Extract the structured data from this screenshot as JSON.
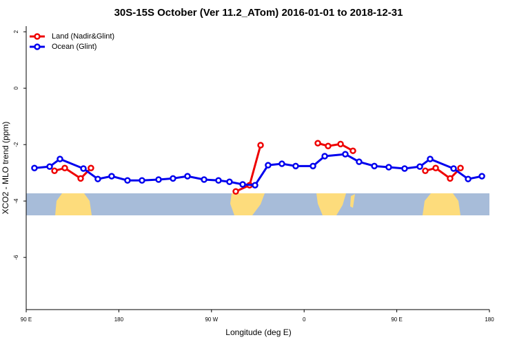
{
  "chart_data": {
    "type": "line",
    "title": "30S-15S October (Ver 11.2_ATom)   2016-01-01 to 2018-12-31",
    "x_label": "Longitude (deg E)",
    "y_label": "XCO2 - MLO trend (ppm)",
    "xlim": [
      90,
      540
    ],
    "xticks": [
      {
        "value": 90,
        "label": "90 E"
      },
      180,
      {
        "value": 270,
        "label": "90 W"
      },
      {
        "value": 360,
        "label": "0"
      },
      {
        "value": 450,
        "label": "90 E"
      },
      {
        "value": 540,
        "label": "180"
      }
    ],
    "ylim": [
      -7.85,
      2.2
    ],
    "yticks": [
      2,
      0,
      -2,
      -4,
      -6
    ],
    "legend": "top-left",
    "series": [
      {
        "name": "Land (Nadir&Glint)",
        "color": "#ee0000",
        "x": [
          117.5,
          127.5,
          142.9,
          152.9,
          null,
          293.6,
          307,
          317.7,
          null,
          373.3,
          383.3,
          395.4,
          407.4,
          null,
          477.7,
          487.8,
          501.8,
          511.9
        ],
        "values": [
          -2.93,
          -2.83,
          -3.2,
          -2.83,
          null,
          -3.66,
          -3.44,
          -2.02,
          null,
          -1.95,
          -2.05,
          -1.98,
          -2.22,
          null,
          -2.93,
          -2.83,
          -3.2,
          -2.83
        ]
      },
      {
        "name": "Ocean (Glint)",
        "color": "#0000ee",
        "x": [
          98,
          112.8,
          122.8,
          145.6,
          159.6,
          173,
          188.4,
          202.5,
          218.6,
          232.6,
          246.7,
          262.8,
          276.8,
          287.5,
          300.3,
          312.3,
          325,
          338.4,
          351.8,
          368.6,
          380,
          400,
          413.4,
          428.2,
          442.2,
          457.6,
          472.4,
          482.4,
          505.2,
          519.3,
          532.7
        ],
        "values": [
          -2.83,
          -2.78,
          -2.51,
          -2.85,
          -3.22,
          -3.12,
          -3.27,
          -3.27,
          -3.24,
          -3.2,
          -3.12,
          -3.24,
          -3.27,
          -3.32,
          -3.41,
          -3.44,
          -2.73,
          -2.68,
          -2.76,
          -2.76,
          -2.41,
          -2.34,
          -2.61,
          -2.76,
          -2.8,
          -2.85,
          -2.78,
          -2.51,
          -2.85,
          -3.22,
          -3.12
        ]
      }
    ]
  }
}
